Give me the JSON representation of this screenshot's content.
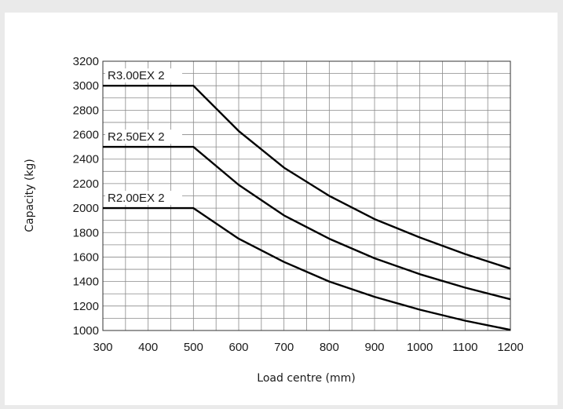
{
  "chart_data": {
    "type": "line",
    "xlabel": "Load centre (mm)",
    "ylabel": "Capacity (kg)",
    "xlim": [
      300,
      1200
    ],
    "ylim": [
      1000,
      3200
    ],
    "xticks": [
      300,
      400,
      500,
      600,
      700,
      800,
      900,
      1000,
      1100,
      1200
    ],
    "yticks": [
      1000,
      1200,
      1400,
      1600,
      1800,
      2000,
      2200,
      2400,
      2600,
      2800,
      3000,
      3200
    ],
    "x_minor_step": 50,
    "y_minor_step": 100,
    "grid": true,
    "legend": "none",
    "line_color": "#000000",
    "series": [
      {
        "name": "R3.00EX 2",
        "x": [
          300,
          500,
          600,
          700,
          800,
          900,
          1000,
          1100,
          1200
        ],
        "y": [
          3000,
          3000,
          2630,
          2330,
          2100,
          1910,
          1760,
          1625,
          1505
        ]
      },
      {
        "name": "R2.50EX 2",
        "x": [
          300,
          500,
          600,
          700,
          800,
          900,
          1000,
          1100,
          1200
        ],
        "y": [
          2500,
          2500,
          2190,
          1940,
          1750,
          1590,
          1460,
          1350,
          1255
        ]
      },
      {
        "name": "R2.00EX 2",
        "x": [
          300,
          500,
          600,
          700,
          800,
          900,
          1000,
          1100,
          1200
        ],
        "y": [
          2000,
          2000,
          1750,
          1560,
          1400,
          1275,
          1170,
          1080,
          1005
        ]
      }
    ]
  }
}
